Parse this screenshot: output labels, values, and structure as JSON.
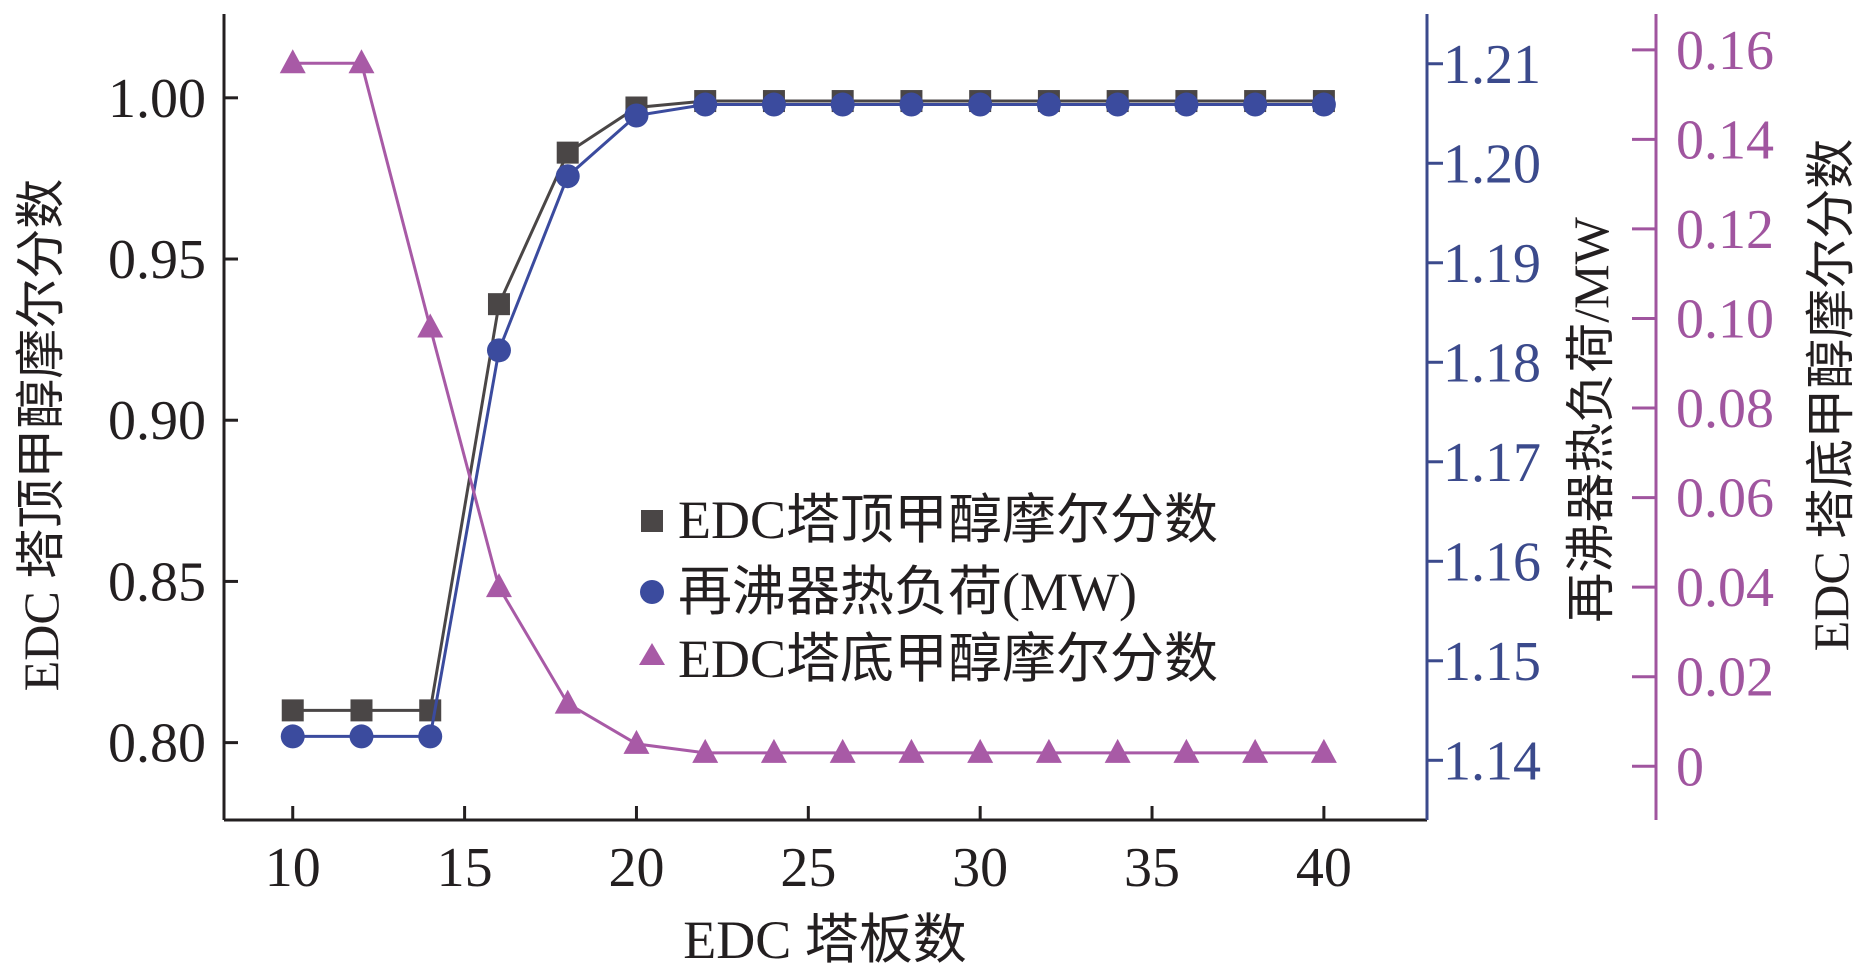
{
  "chart_data": {
    "type": "line",
    "xlabel": "EDC 塔板数",
    "x_ticks": [
      10,
      15,
      20,
      25,
      30,
      35,
      40
    ],
    "xlim": [
      8,
      43
    ],
    "x": [
      10,
      12,
      14,
      16,
      18,
      20,
      22,
      24,
      26,
      28,
      30,
      32,
      34,
      36,
      38,
      40
    ],
    "axes": {
      "left": {
        "label": "EDC 塔顶甲醇摩尔分数",
        "ylim": [
          0.776,
          1.026
        ],
        "ticks": [
          0.8,
          0.85,
          0.9,
          0.95,
          1.0
        ],
        "tick_labels": [
          "0.80",
          "0.85",
          "0.90",
          "0.95",
          "1.00"
        ],
        "color": "#231f20"
      },
      "right1": {
        "label": "再沸器热负荷/MW",
        "ylim": [
          1.134,
          1.215
        ],
        "ticks": [
          1.14,
          1.15,
          1.16,
          1.17,
          1.18,
          1.19,
          1.2,
          1.21
        ],
        "tick_labels": [
          "1.14",
          "1.15",
          "1.16",
          "1.17",
          "1.18",
          "1.19",
          "1.20",
          "1.21"
        ],
        "color": "#3b4a8c"
      },
      "right2": {
        "label": "EDC 塔底甲醇摩尔分数",
        "ylim": [
          -0.012,
          0.168
        ],
        "ticks": [
          0,
          0.02,
          0.04,
          0.06,
          0.08,
          0.1,
          0.12,
          0.14,
          0.16
        ],
        "tick_labels": [
          "0",
          "0.02",
          "0.04",
          "0.06",
          "0.08",
          "0.10",
          "0.12",
          "0.14",
          "0.16"
        ],
        "color": "#a0559f"
      }
    },
    "series": [
      {
        "name": "EDC塔顶甲醇摩尔分数",
        "axis": "left",
        "marker": "square",
        "color": "#4a4646",
        "values": [
          0.81,
          0.81,
          0.81,
          0.936,
          0.983,
          0.997,
          0.999,
          0.999,
          0.999,
          0.999,
          0.999,
          0.999,
          0.999,
          0.999,
          0.999,
          0.999
        ]
      },
      {
        "name": "再沸器热负荷(MW)",
        "axis": "right1",
        "marker": "circle",
        "color": "#3b4b9e",
        "values": [
          1.1424,
          1.1424,
          1.1424,
          1.1812,
          1.1987,
          1.2048,
          1.2059,
          1.2059,
          1.2059,
          1.2059,
          1.2059,
          1.2059,
          1.2059,
          1.2059,
          1.2059,
          1.2059
        ]
      },
      {
        "name": "EDC塔底甲醇摩尔分数",
        "axis": "right2",
        "marker": "triangle",
        "color": "#a85aa6",
        "values": [
          0.157,
          0.157,
          0.098,
          0.04,
          0.014,
          0.005,
          0.003,
          0.003,
          0.003,
          0.003,
          0.003,
          0.003,
          0.003,
          0.003,
          0.003,
          0.003
        ]
      }
    ],
    "legend": {
      "position": "center-right",
      "entries": [
        "EDC塔顶甲醇摩尔分数",
        "再沸器热负荷(MW)",
        "EDC塔底甲醇摩尔分数"
      ]
    }
  }
}
